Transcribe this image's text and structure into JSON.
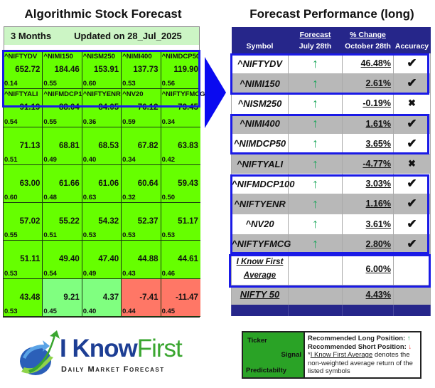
{
  "left": {
    "title": "Algorithmic Stock Forecast",
    "period": "3 Months",
    "updated": "Updated on 28_Jul_2025",
    "cells": [
      {
        "ticker": "^NIFTYDV",
        "signal": "652.72",
        "predictability": "0.14",
        "tone": "green"
      },
      {
        "ticker": "^NIMI150",
        "signal": "184.46",
        "predictability": "0.55",
        "tone": "green"
      },
      {
        "ticker": "^NISM250",
        "signal": "153.91",
        "predictability": "0.60",
        "tone": "green"
      },
      {
        "ticker": "^NIMI400",
        "signal": "137.73",
        "predictability": "0.53",
        "tone": "green"
      },
      {
        "ticker": "^NIMDCP50",
        "signal": "119.90",
        "predictability": "0.56",
        "tone": "green"
      },
      {
        "ticker": "^NIFTYALI",
        "signal": "91.19",
        "predictability": "0.54",
        "tone": "green"
      },
      {
        "ticker": "^NIFMDCP100",
        "signal": "88.04",
        "predictability": "0.55",
        "tone": "green"
      },
      {
        "ticker": "^NIFTYENR",
        "signal": "84.05",
        "predictability": "0.36",
        "tone": "green"
      },
      {
        "ticker": "^NV20",
        "signal": "76.12",
        "predictability": "0.59",
        "tone": "green"
      },
      {
        "ticker": "^NIFTYFMCG",
        "signal": "73.45",
        "predictability": "0.34",
        "tone": "green"
      },
      {
        "ticker": "",
        "signal": "71.13",
        "predictability": "0.51",
        "tone": "green"
      },
      {
        "ticker": "",
        "signal": "68.81",
        "predictability": "0.49",
        "tone": "green"
      },
      {
        "ticker": "",
        "signal": "68.53",
        "predictability": "0.40",
        "tone": "green"
      },
      {
        "ticker": "",
        "signal": "67.82",
        "predictability": "0.34",
        "tone": "green"
      },
      {
        "ticker": "",
        "signal": "63.83",
        "predictability": "0.42",
        "tone": "green"
      },
      {
        "ticker": "",
        "signal": "63.00",
        "predictability": "0.60",
        "tone": "green"
      },
      {
        "ticker": "",
        "signal": "61.66",
        "predictability": "0.48",
        "tone": "green"
      },
      {
        "ticker": "",
        "signal": "61.06",
        "predictability": "0.63",
        "tone": "green"
      },
      {
        "ticker": "",
        "signal": "60.64",
        "predictability": "0.32",
        "tone": "green"
      },
      {
        "ticker": "",
        "signal": "59.43",
        "predictability": "0.50",
        "tone": "green"
      },
      {
        "ticker": "",
        "signal": "57.02",
        "predictability": "0.55",
        "tone": "green"
      },
      {
        "ticker": "",
        "signal": "55.22",
        "predictability": "0.51",
        "tone": "green"
      },
      {
        "ticker": "",
        "signal": "54.32",
        "predictability": "0.53",
        "tone": "green"
      },
      {
        "ticker": "",
        "signal": "52.37",
        "predictability": "0.53",
        "tone": "green"
      },
      {
        "ticker": "",
        "signal": "51.17",
        "predictability": "0.53",
        "tone": "green"
      },
      {
        "ticker": "",
        "signal": "51.11",
        "predictability": "0.53",
        "tone": "green"
      },
      {
        "ticker": "",
        "signal": "49.40",
        "predictability": "0.54",
        "tone": "green"
      },
      {
        "ticker": "",
        "signal": "47.40",
        "predictability": "0.49",
        "tone": "green"
      },
      {
        "ticker": "",
        "signal": "44.88",
        "predictability": "0.43",
        "tone": "green"
      },
      {
        "ticker": "",
        "signal": "44.61",
        "predictability": "0.46",
        "tone": "green"
      },
      {
        "ticker": "",
        "signal": "43.48",
        "predictability": "0.53",
        "tone": "green"
      },
      {
        "ticker": "",
        "signal": "9.21",
        "predictability": "0.45",
        "tone": "light"
      },
      {
        "ticker": "",
        "signal": "4.37",
        "predictability": "0.40",
        "tone": "light"
      },
      {
        "ticker": "",
        "signal": "-7.41",
        "predictability": "0.44",
        "tone": "red"
      },
      {
        "ticker": "",
        "signal": "-11.47",
        "predictability": "0.45",
        "tone": "red"
      }
    ]
  },
  "right": {
    "title": "Forecast Performance (long)",
    "headers": {
      "symbol": "Symbol",
      "forecast_top": "Forecast",
      "forecast_bottom": "July 28th",
      "change_top": "% Change",
      "change_bottom": "October 28th",
      "accuracy": "Accuracy"
    },
    "rows": [
      {
        "symbol": "^NIFTYDV",
        "forecast": "↑",
        "change": "46.48%",
        "accuracy": "✔"
      },
      {
        "symbol": "^NIMI150",
        "forecast": "↑",
        "change": "2.61%",
        "accuracy": "✔"
      },
      {
        "symbol": "^NISM250",
        "forecast": "↑",
        "change": "-0.19%",
        "accuracy": "✖"
      },
      {
        "symbol": "^NIMI400",
        "forecast": "↑",
        "change": "1.61%",
        "accuracy": "✔"
      },
      {
        "symbol": "^NIMDCP50",
        "forecast": "↑",
        "change": "3.65%",
        "accuracy": "✔"
      },
      {
        "symbol": "^NIFTYALI",
        "forecast": "↑",
        "change": "-4.77%",
        "accuracy": "✖"
      },
      {
        "symbol": "^NIFMDCP100",
        "forecast": "↑",
        "change": "3.03%",
        "accuracy": "✔"
      },
      {
        "symbol": "^NIFTYENR",
        "forecast": "↑",
        "change": "1.16%",
        "accuracy": "✔"
      },
      {
        "symbol": "^NV20",
        "forecast": "↑",
        "change": "3.61%",
        "accuracy": "✔"
      },
      {
        "symbol": "^NIFTYFMCG",
        "forecast": "↑",
        "change": "2.80%",
        "accuracy": "✔"
      }
    ],
    "average": {
      "label_line1": "I Know First",
      "label_line2": "Average",
      "change": "6.00%"
    },
    "index": {
      "symbol": "NIFTY 50",
      "change": "4.43%"
    }
  },
  "logo": {
    "name_part1": "I Know",
    "name_part2": "First",
    "tagline": "Daily Market Forecast"
  },
  "legend": {
    "ticker": "Ticker",
    "signal": "Signal",
    "predictability": "Predictabilty",
    "long_label": "Recommended Long Position:",
    "long_icon": "↑",
    "short_label": "Recommended Short Position:",
    "short_icon": "↓",
    "note_prefix": "*",
    "note_link": "I Know First Average",
    "note_rest": " denotes the non-weighted average return of the listed symbols"
  },
  "colors": {
    "green": "#66ff00",
    "light_green": "#80ff80",
    "red": "#ff7766",
    "navy": "#26268a",
    "highlight": "#1a1ae6"
  }
}
